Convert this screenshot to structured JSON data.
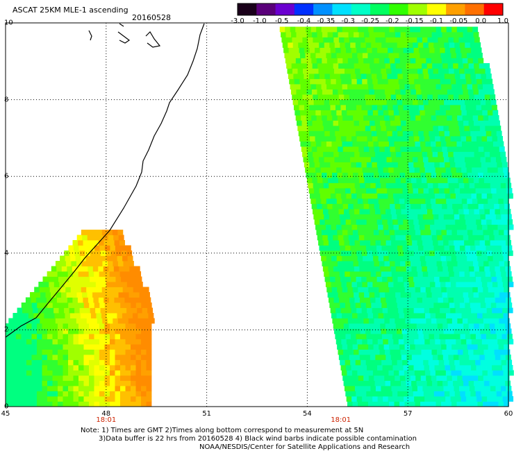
{
  "header": {
    "title": "ASCAT 25KM MLE-1 ascending",
    "date": "20160528"
  },
  "colorbar": {
    "labels": [
      "-3.0",
      "-1.0",
      "-0.5",
      "-0.4",
      "-0.35",
      "-0.3",
      "-0.25",
      "-0.2",
      "-0.15",
      "-0.1",
      "-0.05",
      "0.0",
      "1.0"
    ]
  },
  "axes": {
    "x_ticks": [
      "45",
      "48",
      "51",
      "54",
      "57",
      "60"
    ],
    "y_ticks": [
      "0",
      "2",
      "4",
      "6",
      "8",
      "10"
    ],
    "pass_times": [
      {
        "label": "18:01",
        "lon": 48
      },
      {
        "label": "18:01",
        "lon": 55
      }
    ]
  },
  "notes": {
    "line1": "Note: 1) Times are GMT 2)Times along bottom correspond to measurement at 5N",
    "line2": "3)Data buffer is 22 hrs from 20160528 4) Black wind barbs indicate possible contamination",
    "line3": "NOAA/NESDIS/Center for Satellite Applications and Research"
  },
  "colors": {
    "colorbar": [
      "#1a001a",
      "#5a007a",
      "#6a00d0",
      "#0030ff",
      "#0090ff",
      "#00e0ff",
      "#00ffc8",
      "#00ff60",
      "#30ff00",
      "#a0ff00",
      "#ffff00",
      "#ffa000",
      "#ff7000",
      "#ff0000"
    ],
    "grid": "#000000",
    "coastline": "#000000"
  }
}
